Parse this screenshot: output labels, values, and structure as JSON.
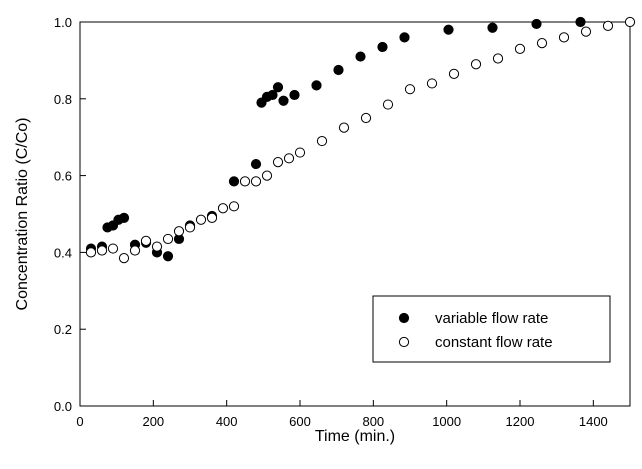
{
  "chart_data": {
    "type": "scatter",
    "title": "",
    "xlabel": "Time (min.)",
    "ylabel": "Concentration Ratio (C/Co)",
    "xlim": [
      0,
      1500
    ],
    "ylim": [
      0.0,
      1.0
    ],
    "x_ticks": [
      "0",
      "200",
      "400",
      "600",
      "800",
      "1000",
      "1200",
      "1400"
    ],
    "y_ticks": [
      "0.0",
      "0.2",
      "0.4",
      "0.6",
      "0.8",
      "1.0"
    ],
    "grid": false,
    "legend_position": "bottom-right",
    "series": [
      {
        "name": "variable flow rate",
        "marker": "filled-circle",
        "color": "#000000",
        "points": [
          [
            30,
            0.41
          ],
          [
            60,
            0.415
          ],
          [
            75,
            0.465
          ],
          [
            90,
            0.47
          ],
          [
            105,
            0.485
          ],
          [
            120,
            0.49
          ],
          [
            150,
            0.42
          ],
          [
            180,
            0.425
          ],
          [
            210,
            0.4
          ],
          [
            240,
            0.39
          ],
          [
            270,
            0.435
          ],
          [
            300,
            0.47
          ],
          [
            360,
            0.495
          ],
          [
            420,
            0.585
          ],
          [
            480,
            0.63
          ],
          [
            495,
            0.79
          ],
          [
            510,
            0.805
          ],
          [
            525,
            0.81
          ],
          [
            540,
            0.83
          ],
          [
            555,
            0.795
          ],
          [
            585,
            0.81
          ],
          [
            645,
            0.835
          ],
          [
            705,
            0.875
          ],
          [
            765,
            0.91
          ],
          [
            825,
            0.935
          ],
          [
            885,
            0.96
          ],
          [
            1005,
            0.98
          ],
          [
            1125,
            0.985
          ],
          [
            1245,
            0.995
          ],
          [
            1365,
            1.0
          ]
        ]
      },
      {
        "name": "constant flow rate",
        "marker": "open-circle",
        "color": "#000000",
        "points": [
          [
            30,
            0.4
          ],
          [
            60,
            0.405
          ],
          [
            90,
            0.41
          ],
          [
            120,
            0.385
          ],
          [
            150,
            0.405
          ],
          [
            180,
            0.43
          ],
          [
            210,
            0.415
          ],
          [
            240,
            0.435
          ],
          [
            270,
            0.455
          ],
          [
            300,
            0.465
          ],
          [
            330,
            0.485
          ],
          [
            360,
            0.49
          ],
          [
            390,
            0.515
          ],
          [
            420,
            0.52
          ],
          [
            450,
            0.585
          ],
          [
            480,
            0.585
          ],
          [
            510,
            0.6
          ],
          [
            540,
            0.635
          ],
          [
            570,
            0.645
          ],
          [
            600,
            0.66
          ],
          [
            660,
            0.69
          ],
          [
            720,
            0.725
          ],
          [
            780,
            0.75
          ],
          [
            840,
            0.785
          ],
          [
            900,
            0.825
          ],
          [
            960,
            0.84
          ],
          [
            1020,
            0.865
          ],
          [
            1080,
            0.89
          ],
          [
            1140,
            0.905
          ],
          [
            1200,
            0.93
          ],
          [
            1260,
            0.945
          ],
          [
            1320,
            0.96
          ],
          [
            1380,
            0.975
          ],
          [
            1440,
            0.99
          ],
          [
            1500,
            1.0
          ]
        ]
      }
    ]
  }
}
